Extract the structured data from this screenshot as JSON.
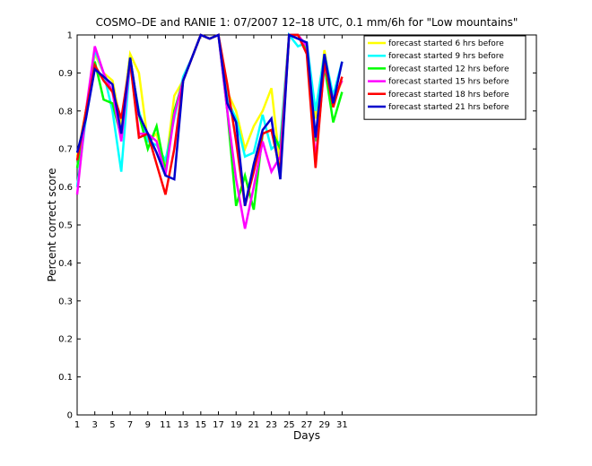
{
  "chart_data": {
    "type": "line",
    "title": "COSMO–DE and RANIE 1: 07/2007 12–18 UTC, 0.1 mm/6h for \"Low mountains\"",
    "xlabel": "Days",
    "ylabel": "Percent correct score",
    "xlim": [
      1,
      53
    ],
    "ylim": [
      0,
      1
    ],
    "xticks": [
      1,
      3,
      5,
      7,
      9,
      11,
      13,
      15,
      17,
      19,
      21,
      23,
      25,
      27,
      29,
      31
    ],
    "yticks": [
      0,
      0.1,
      0.2,
      0.3,
      0.4,
      0.5,
      0.6,
      0.7,
      0.8,
      0.9,
      1
    ],
    "ytick_labels": [
      "0",
      "0.1",
      "0.2",
      "0.3",
      "0.4",
      "0.5",
      "0.6",
      "0.7",
      "0.8",
      "0.9",
      "1"
    ],
    "grid": false,
    "legend_position": "top-right",
    "x": [
      1,
      2,
      3,
      4,
      5,
      6,
      7,
      8,
      9,
      10,
      11,
      12,
      13,
      14,
      15,
      16,
      17,
      18,
      19,
      20,
      21,
      22,
      23,
      24,
      25,
      26,
      27,
      28,
      29,
      30,
      31
    ],
    "series": [
      {
        "name": "forecast started 6 hrs before",
        "color": "#ffff00",
        "values": [
          0.68,
          0.8,
          0.95,
          0.9,
          0.88,
          0.76,
          0.95,
          0.9,
          0.72,
          0.74,
          0.65,
          0.84,
          0.88,
          0.94,
          1.0,
          0.99,
          1.0,
          0.85,
          0.8,
          0.7,
          0.76,
          0.8,
          0.86,
          0.65,
          1.0,
          1.0,
          0.97,
          0.78,
          0.96,
          0.82,
          0.88
        ]
      },
      {
        "name": "forecast started 9 hrs before",
        "color": "#00ffff",
        "values": [
          0.6,
          0.78,
          0.96,
          0.9,
          0.8,
          0.64,
          0.93,
          0.8,
          0.72,
          0.71,
          0.67,
          0.78,
          0.89,
          0.94,
          1.0,
          0.99,
          1.0,
          0.83,
          0.78,
          0.68,
          0.69,
          0.79,
          0.7,
          0.72,
          1.0,
          0.97,
          0.98,
          0.8,
          0.95,
          0.84,
          0.93
        ]
      },
      {
        "name": "forecast started 12 hrs before",
        "color": "#00ff00",
        "values": [
          0.65,
          0.8,
          0.93,
          0.83,
          0.82,
          0.73,
          0.94,
          0.79,
          0.7,
          0.76,
          0.64,
          0.8,
          0.88,
          0.94,
          1.0,
          0.99,
          1.0,
          0.8,
          0.55,
          0.63,
          0.54,
          0.74,
          0.75,
          0.7,
          1.0,
          1.0,
          0.96,
          0.72,
          0.92,
          0.77,
          0.85
        ]
      },
      {
        "name": "forecast started 15 hrs before",
        "color": "#ff00ff",
        "values": [
          0.58,
          0.8,
          0.97,
          0.9,
          0.85,
          0.72,
          0.93,
          0.74,
          0.74,
          0.72,
          0.63,
          0.79,
          0.88,
          0.94,
          1.0,
          0.99,
          1.0,
          0.8,
          0.62,
          0.49,
          0.6,
          0.72,
          0.64,
          0.68,
          1.0,
          1.0,
          0.97,
          0.67,
          0.92,
          0.83,
          0.88
        ]
      },
      {
        "name": "forecast started 18 hrs before",
        "color": "#ff0000",
        "values": [
          0.67,
          0.8,
          0.92,
          0.88,
          0.85,
          0.78,
          0.93,
          0.73,
          0.74,
          0.66,
          0.58,
          0.7,
          0.88,
          0.94,
          1.0,
          0.99,
          1.0,
          0.87,
          0.72,
          0.55,
          0.64,
          0.74,
          0.75,
          0.64,
          1.0,
          1.0,
          0.95,
          0.65,
          0.93,
          0.81,
          0.89
        ]
      },
      {
        "name": "forecast started 21 hrs before",
        "color": "#0000cc",
        "values": [
          0.69,
          0.78,
          0.91,
          0.89,
          0.87,
          0.74,
          0.94,
          0.79,
          0.74,
          0.69,
          0.63,
          0.62,
          0.88,
          0.94,
          1.0,
          0.99,
          1.0,
          0.82,
          0.77,
          0.55,
          0.66,
          0.75,
          0.78,
          0.62,
          1.0,
          0.99,
          0.98,
          0.73,
          0.95,
          0.82,
          0.93
        ]
      }
    ]
  }
}
